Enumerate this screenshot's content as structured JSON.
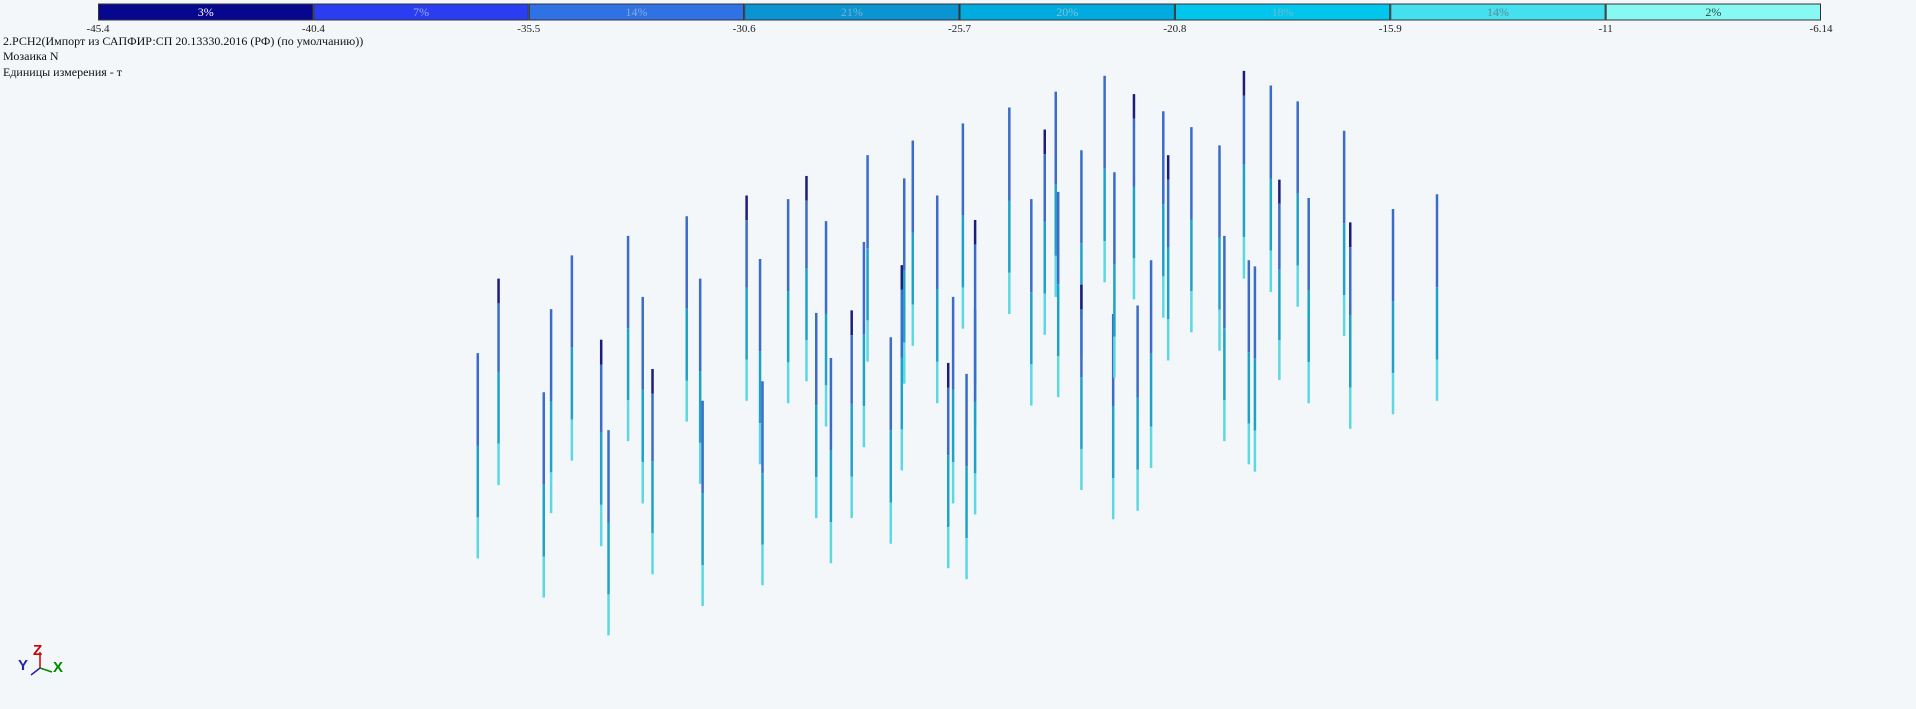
{
  "legend": {
    "segments": [
      {
        "label": "3%",
        "color": "#06068f",
        "text_color": "#ffffff"
      },
      {
        "label": "7%",
        "color": "#2b3df0",
        "text_color": "#9aa8e8"
      },
      {
        "label": "14%",
        "color": "#2f72e6",
        "text_color": "#8aa8d8"
      },
      {
        "label": "21%",
        "color": "#0a94d2",
        "text_color": "#7ab0d0"
      },
      {
        "label": "20%",
        "color": "#00acdf",
        "text_color": "#80c0d8"
      },
      {
        "label": "18%",
        "color": "#00c6ee",
        "text_color": "#70b8c8"
      },
      {
        "label": "14%",
        "color": "#44e0f0",
        "text_color": "#608890"
      },
      {
        "label": "2%",
        "color": "#88f8f2",
        "text_color": "#304848"
      }
    ],
    "bounds": [
      -45.4,
      -40.4,
      -35.5,
      -30.6,
      -25.7,
      -20.8,
      -15.9,
      -11,
      -6.14
    ]
  },
  "info": {
    "load": "2.РСН2(Импорт из САПФИР:СП 20.13330.2016 (РФ) (по умолчанию))",
    "mode": "Мозаика N",
    "units": "Единицы измерения - т"
  },
  "axes": {
    "y": "Y",
    "z": "Z",
    "x": "X"
  }
}
